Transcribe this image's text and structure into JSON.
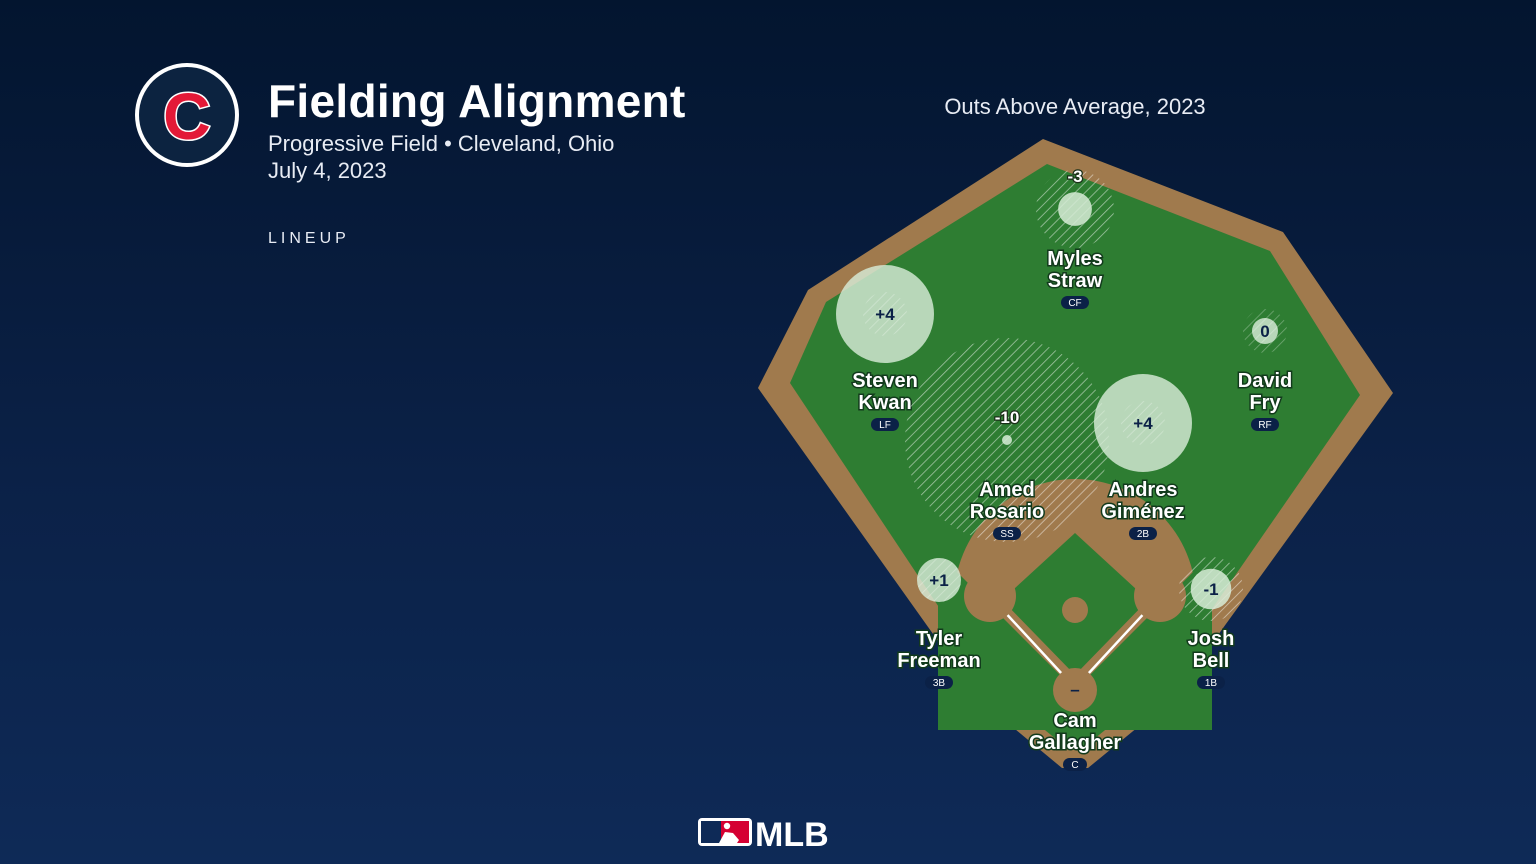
{
  "header": {
    "title": "Fielding Alignment",
    "venue": "Progressive Field • Cleveland, Ohio",
    "date": "July 4, 2023",
    "section_label": "LINEUP"
  },
  "team_logo": {
    "letter": "C",
    "colors": {
      "navy": "#0c2340",
      "red": "#e31937"
    }
  },
  "chart_title": "Outs Above Average, 2023",
  "colors": {
    "grass": "#2e7d32",
    "dirt": "#a07a4d",
    "marker_positive": "#d7ecd7",
    "background_top": "#03152f",
    "background_bottom": "#0e2a57",
    "label_badge": "#0b2147"
  },
  "chart_data": {
    "type": "diagram",
    "metric": "Outs Above Average, 2023",
    "players": [
      {
        "position": "CF",
        "first": "Myles",
        "last": "Straw",
        "oaa": "-3",
        "oaa_value": -3
      },
      {
        "position": "LF",
        "first": "Steven",
        "last": "Kwan",
        "oaa": "+4",
        "oaa_value": 4
      },
      {
        "position": "RF",
        "first": "David",
        "last": "Fry",
        "oaa": "0",
        "oaa_value": 0
      },
      {
        "position": "SS",
        "first": "Amed",
        "last": "Rosario",
        "oaa": "-10",
        "oaa_value": -10
      },
      {
        "position": "2B",
        "first": "Andres",
        "last": "Giménez",
        "oaa": "+4",
        "oaa_value": 4
      },
      {
        "position": "3B",
        "first": "Tyler",
        "last": "Freeman",
        "oaa": "+1",
        "oaa_value": 1
      },
      {
        "position": "1B",
        "first": "Josh",
        "last": "Bell",
        "oaa": "-1",
        "oaa_value": -1
      },
      {
        "position": "C",
        "first": "Cam",
        "last": "Gallagher",
        "oaa": "–",
        "oaa_value": null
      }
    ]
  },
  "footer": {
    "brand": "MLB"
  }
}
